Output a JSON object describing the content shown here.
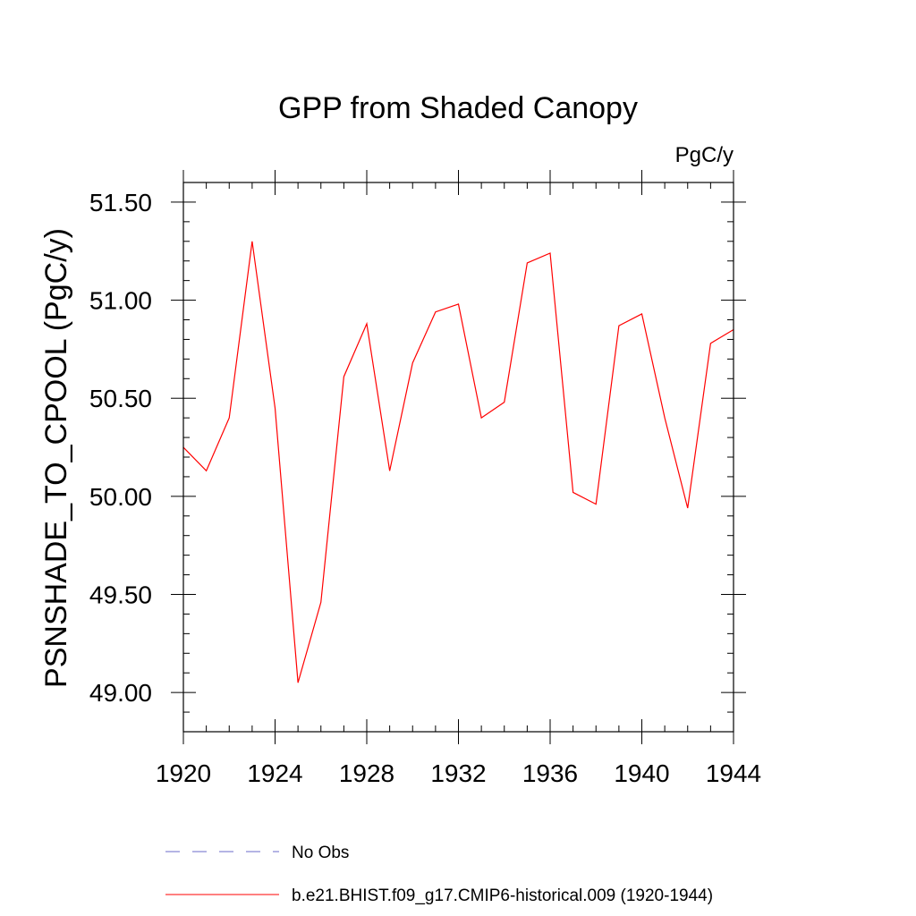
{
  "chart_data": {
    "type": "line",
    "title": "GPP from Shaded Canopy",
    "units_label": "PgC/y",
    "ylabel": "PSNSHADE_TO_CPOOL  (PgC/y)",
    "xlabel": "",
    "xlim": [
      1920,
      1944
    ],
    "ylim": [
      48.8,
      51.6
    ],
    "x_ticks": [
      1920,
      1924,
      1928,
      1932,
      1936,
      1940,
      1944
    ],
    "x_tick_labels": [
      "1920",
      "1924",
      "1928",
      "1932",
      "1936",
      "1940",
      "1944"
    ],
    "y_ticks": [
      49.0,
      49.5,
      50.0,
      50.5,
      51.0,
      51.5
    ],
    "y_tick_labels": [
      "49.00",
      "49.50",
      "50.00",
      "50.50",
      "51.00",
      "51.50"
    ],
    "grid": false,
    "legend_position": "bottom",
    "series": [
      {
        "name": "b.e21.BHIST.f09_g17.CMIP6-historical.009 (1920-1944)",
        "color": "#ff0000",
        "dash": "solid",
        "x": [
          1920,
          1921,
          1922,
          1923,
          1924,
          1925,
          1926,
          1927,
          1928,
          1929,
          1930,
          1931,
          1932,
          1933,
          1934,
          1935,
          1936,
          1937,
          1938,
          1939,
          1940,
          1941,
          1942,
          1943,
          1944
        ],
        "y": [
          50.25,
          50.13,
          50.4,
          51.3,
          50.45,
          49.05,
          49.46,
          50.61,
          50.88,
          50.13,
          50.68,
          50.94,
          50.98,
          50.4,
          50.48,
          51.19,
          51.24,
          50.02,
          49.96,
          50.87,
          50.93,
          50.4,
          49.94,
          50.78,
          50.85
        ]
      }
    ],
    "legend": [
      {
        "label": "No Obs",
        "color": "#6a6ac8",
        "dash": "dashed"
      },
      {
        "label": "b.e21.BHIST.f09_g17.CMIP6-historical.009 (1920-1944)",
        "color": "#ff0000",
        "dash": "solid"
      }
    ]
  }
}
